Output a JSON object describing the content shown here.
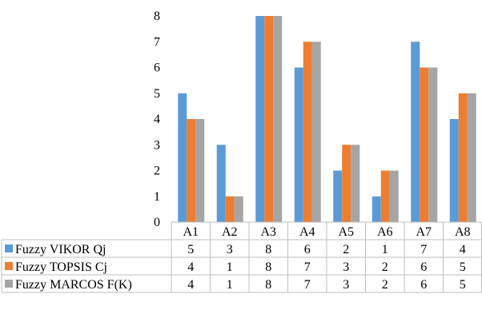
{
  "chart_data": {
    "type": "bar",
    "categories": [
      "A1",
      "A2",
      "A3",
      "A4",
      "A5",
      "A6",
      "A7",
      "A8"
    ],
    "series": [
      {
        "name": "Fuzzy VIKOR Qj",
        "color": "#5b9bd5",
        "values": [
          5,
          3,
          8,
          6,
          2,
          1,
          7,
          4
        ]
      },
      {
        "name": "Fuzzy TOPSIS Cj",
        "color": "#ed7d31",
        "values": [
          4,
          1,
          8,
          7,
          3,
          2,
          6,
          5
        ]
      },
      {
        "name": "Fuzzy MARCOS F(K)",
        "color": "#a5a5a5",
        "values": [
          4,
          1,
          8,
          7,
          3,
          2,
          6,
          5
        ]
      }
    ],
    "y_ticks": [
      "0",
      "1",
      "2",
      "3",
      "4",
      "5",
      "6",
      "7",
      "8"
    ],
    "ylim": [
      0,
      8
    ],
    "grid": false,
    "legend": "data table"
  }
}
